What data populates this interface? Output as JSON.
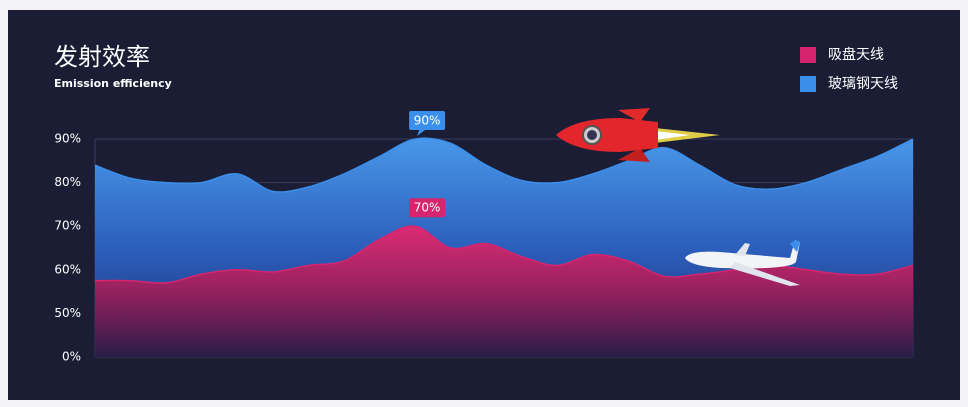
{
  "chart_data": {
    "type": "area",
    "title": "发射效率",
    "subtitle": "Emission efficiency",
    "categories": [
      null,
      null,
      null,
      null,
      null,
      null,
      null,
      null,
      null,
      null,
      null,
      null,
      null,
      null,
      null,
      null,
      null,
      null,
      null,
      null,
      null,
      null,
      null,
      null
    ],
    "series": [
      {
        "name": "吸盘天线",
        "color": "#d6246e",
        "values": [
          57.5,
          57.5,
          57,
          59,
          60,
          59.5,
          61,
          62,
          67,
          70,
          65,
          66,
          63,
          61,
          63.5,
          62,
          58.5,
          59,
          60,
          61,
          60,
          59,
          59,
          61
        ],
        "value_labels": [
          null,
          null,
          null,
          null,
          null,
          null,
          null,
          null,
          null,
          "70%",
          null,
          null,
          null,
          null,
          null,
          null,
          null,
          null,
          null,
          null,
          null,
          null,
          null,
          null
        ]
      },
      {
        "name": "玻璃钢天线",
        "color": "#3b8eea",
        "values": [
          84,
          81,
          80,
          80,
          82,
          78,
          79,
          82,
          86,
          90,
          89,
          84,
          80.5,
          80,
          82,
          85,
          88,
          84,
          79.5,
          78.5,
          80,
          83,
          86,
          90
        ],
        "value_labels": [
          null,
          null,
          null,
          null,
          null,
          null,
          null,
          null,
          null,
          "90%",
          null,
          null,
          null,
          null,
          null,
          null,
          null,
          null,
          null,
          null,
          null,
          null,
          null,
          null
        ]
      }
    ],
    "ylim": [
      0,
      90
    ],
    "yticks": [
      {
        "value": 0,
        "label": "0%"
      },
      {
        "value": 50,
        "label": "50%"
      },
      {
        "value": 60,
        "label": "60%"
      },
      {
        "value": 70,
        "label": "70%"
      },
      {
        "value": 80,
        "label": "80%"
      },
      {
        "value": 90,
        "label": "90%"
      }
    ],
    "grid": true,
    "legend": "top-right"
  }
}
